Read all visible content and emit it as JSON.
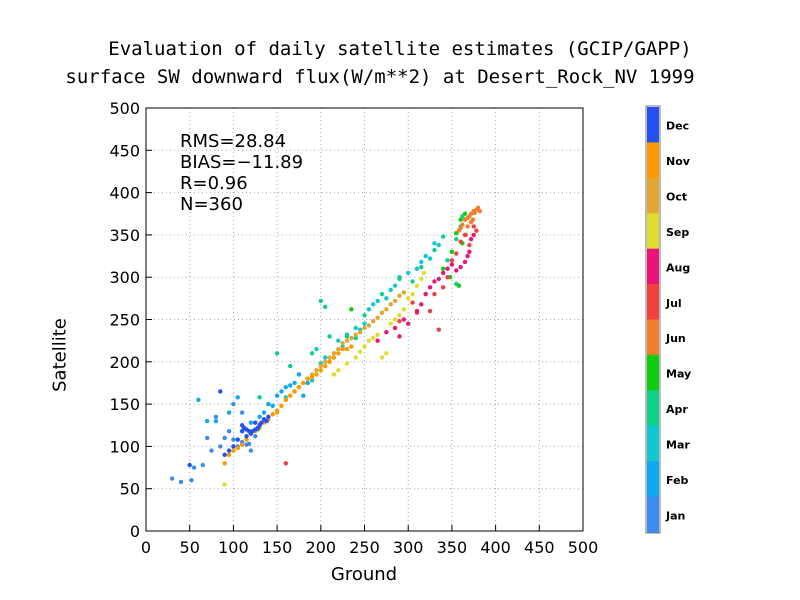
{
  "title": {
    "line1": "Evaluation of daily satellite estimates (GCIP/GAPP)",
    "line2": "surface SW downward flux(W/m**2) at Desert_Rock_NV 1999"
  },
  "stats": {
    "rms": "RMS=28.84",
    "bias": "BIAS=−11.89",
    "r": "R=0.96",
    "n": "N=360"
  },
  "chart_data": {
    "type": "scatter",
    "xlabel": "Ground",
    "ylabel": "Satellite",
    "xlim": [
      0,
      500
    ],
    "ylim": [
      0,
      500
    ],
    "xticks": [
      0,
      50,
      100,
      150,
      200,
      250,
      300,
      350,
      400,
      450,
      500
    ],
    "yticks": [
      0,
      50,
      100,
      150,
      200,
      250,
      300,
      350,
      400,
      450,
      500
    ],
    "grid": true,
    "legend": {
      "placement": "right colorbar",
      "entries": [
        {
          "label": "Dec",
          "color": "#2450f0"
        },
        {
          "label": "Nov",
          "color": "#ff9900"
        },
        {
          "label": "Oct",
          "color": "#e0a830"
        },
        {
          "label": "Sep",
          "color": "#e0dc30"
        },
        {
          "label": "Aug",
          "color": "#e8147c"
        },
        {
          "label": "Jul",
          "color": "#f04040"
        },
        {
          "label": "Jun",
          "color": "#f08030"
        },
        {
          "label": "May",
          "color": "#10cc10"
        },
        {
          "label": "Apr",
          "color": "#10d088"
        },
        {
          "label": "Mar",
          "color": "#10c8d0"
        },
        {
          "label": "Feb",
          "color": "#10a8f0"
        },
        {
          "label": "Jan",
          "color": "#3c8cf0"
        }
      ]
    },
    "series": [
      {
        "month": "Jan",
        "color": "#3c8cf0",
        "points": [
          [
            30,
            62
          ],
          [
            40,
            58
          ],
          [
            52,
            60
          ],
          [
            55,
            75
          ],
          [
            65,
            78
          ],
          [
            70,
            110
          ],
          [
            75,
            95
          ],
          [
            85,
            100
          ],
          [
            90,
            110
          ],
          [
            95,
            118
          ],
          [
            100,
            108
          ],
          [
            105,
            100
          ],
          [
            110,
            105
          ],
          [
            115,
            102
          ],
          [
            118,
            103
          ],
          [
            120,
            95
          ],
          [
            125,
            112
          ],
          [
            128,
            120
          ],
          [
            130,
            125
          ],
          [
            80,
            135
          ],
          [
            100,
            150
          ],
          [
            110,
            140
          ]
        ]
      },
      {
        "month": "Feb",
        "color": "#10a8f0",
        "points": [
          [
            60,
            155
          ],
          [
            70,
            130
          ],
          [
            80,
            130
          ],
          [
            95,
            140
          ],
          [
            105,
            158
          ],
          [
            120,
            128
          ],
          [
            130,
            135
          ],
          [
            135,
            140
          ],
          [
            140,
            150
          ],
          [
            145,
            148
          ],
          [
            150,
            160
          ],
          [
            155,
            165
          ],
          [
            160,
            170
          ],
          [
            165,
            172
          ],
          [
            170,
            175
          ],
          [
            175,
            185
          ],
          [
            180,
            160
          ],
          [
            185,
            175
          ]
        ]
      },
      {
        "month": "Mar",
        "color": "#10c8d0",
        "points": [
          [
            195,
            215
          ],
          [
            200,
            198
          ],
          [
            205,
            205
          ],
          [
            210,
            200
          ],
          [
            215,
            210
          ],
          [
            220,
            225
          ],
          [
            225,
            218
          ],
          [
            230,
            232
          ],
          [
            240,
            240
          ],
          [
            245,
            238
          ],
          [
            250,
            245
          ],
          [
            255,
            262
          ],
          [
            260,
            268
          ],
          [
            265,
            272
          ],
          [
            270,
            258
          ],
          [
            275,
            275
          ],
          [
            280,
            285
          ],
          [
            285,
            290
          ],
          [
            290,
            300
          ],
          [
            300,
            305
          ],
          [
            310,
            310
          ],
          [
            315,
            318
          ],
          [
            320,
            325
          ],
          [
            325,
            322
          ],
          [
            330,
            340
          ],
          [
            335,
            338
          ],
          [
            160,
            158
          ],
          [
            170,
            165
          ],
          [
            180,
            175
          ],
          [
            190,
            178
          ]
        ]
      },
      {
        "month": "Apr",
        "color": "#10d088",
        "points": [
          [
            150,
            210
          ],
          [
            200,
            272
          ],
          [
            205,
            265
          ],
          [
            230,
            230
          ],
          [
            240,
            228
          ],
          [
            250,
            255
          ],
          [
            270,
            280
          ],
          [
            290,
            298
          ],
          [
            305,
            295
          ],
          [
            315,
            312
          ],
          [
            330,
            332
          ],
          [
            340,
            348
          ],
          [
            345,
            320
          ],
          [
            350,
            330
          ],
          [
            355,
            345
          ],
          [
            360,
            360
          ],
          [
            362,
            372
          ],
          [
            355,
            292
          ],
          [
            130,
            158
          ],
          [
            165,
            195
          ],
          [
            190,
            210
          ],
          [
            210,
            230
          ]
        ]
      },
      {
        "month": "May",
        "color": "#10cc10",
        "points": [
          [
            235,
            262
          ],
          [
            320,
            280
          ],
          [
            340,
            310
          ],
          [
            350,
            330
          ],
          [
            355,
            352
          ],
          [
            360,
            368
          ],
          [
            365,
            375
          ],
          [
            370,
            372
          ],
          [
            375,
            378
          ],
          [
            348,
            300
          ],
          [
            358,
            290
          ],
          [
            362,
            340
          ]
        ]
      },
      {
        "month": "Jun",
        "color": "#f08030",
        "points": [
          [
            362,
            362
          ],
          [
            365,
            368
          ],
          [
            368,
            370
          ],
          [
            370,
            372
          ],
          [
            372,
            375
          ],
          [
            375,
            378
          ],
          [
            378,
            380
          ],
          [
            380,
            382
          ],
          [
            382,
            378
          ],
          [
            376,
            376
          ],
          [
            372,
            365
          ],
          [
            368,
            360
          ],
          [
            360,
            358
          ],
          [
            358,
            355
          ],
          [
            366,
            350
          ],
          [
            374,
            368
          ]
        ]
      },
      {
        "month": "Jul",
        "color": "#f04040",
        "points": [
          [
            160,
            80
          ],
          [
            305,
            270
          ],
          [
            325,
            260
          ],
          [
            340,
            288
          ],
          [
            345,
            300
          ],
          [
            350,
            320
          ],
          [
            355,
            328
          ],
          [
            360,
            342
          ],
          [
            365,
            350
          ],
          [
            370,
            338
          ],
          [
            375,
            360
          ],
          [
            378,
            355
          ],
          [
            335,
            238
          ],
          [
            290,
            248
          ],
          [
            310,
            258
          ],
          [
            330,
            280
          ]
        ]
      },
      {
        "month": "Aug",
        "color": "#e8147c",
        "points": [
          [
            290,
            230
          ],
          [
            300,
            245
          ],
          [
            310,
            260
          ],
          [
            320,
            280
          ],
          [
            325,
            288
          ],
          [
            330,
            295
          ],
          [
            335,
            298
          ],
          [
            340,
            305
          ],
          [
            345,
            310
          ],
          [
            350,
            315
          ],
          [
            355,
            308
          ],
          [
            360,
            312
          ],
          [
            365,
            318
          ],
          [
            368,
            325
          ],
          [
            370,
            330
          ],
          [
            372,
            345
          ],
          [
            375,
            350
          ],
          [
            265,
            225
          ],
          [
            275,
            235
          ],
          [
            285,
            240
          ],
          [
            295,
            250
          ],
          [
            315,
            268
          ]
        ]
      },
      {
        "month": "Sep",
        "color": "#e0dc30",
        "points": [
          [
            90,
            55
          ],
          [
            215,
            185
          ],
          [
            220,
            190
          ],
          [
            230,
            198
          ],
          [
            240,
            205
          ],
          [
            245,
            212
          ],
          [
            250,
            218
          ],
          [
            255,
            225
          ],
          [
            260,
            228
          ],
          [
            265,
            232
          ],
          [
            270,
            205
          ],
          [
            275,
            210
          ],
          [
            280,
            245
          ],
          [
            285,
            250
          ],
          [
            290,
            255
          ],
          [
            295,
            262
          ],
          [
            300,
            275
          ],
          [
            305,
            280
          ],
          [
            310,
            290
          ],
          [
            315,
            298
          ],
          [
            318,
            305
          ]
        ]
      },
      {
        "month": "Oct",
        "color": "#e0a830",
        "points": [
          [
            150,
            140
          ],
          [
            155,
            148
          ],
          [
            160,
            155
          ],
          [
            165,
            160
          ],
          [
            170,
            165
          ],
          [
            175,
            170
          ],
          [
            180,
            175
          ],
          [
            185,
            180
          ],
          [
            190,
            185
          ],
          [
            195,
            190
          ],
          [
            200,
            195
          ],
          [
            205,
            200
          ],
          [
            210,
            205
          ],
          [
            215,
            210
          ],
          [
            220,
            215
          ],
          [
            225,
            222
          ],
          [
            230,
            225
          ],
          [
            235,
            228
          ],
          [
            240,
            232
          ],
          [
            245,
            235
          ],
          [
            250,
            240
          ],
          [
            255,
            243
          ],
          [
            260,
            248
          ],
          [
            265,
            252
          ],
          [
            270,
            258
          ],
          [
            275,
            262
          ],
          [
            280,
            268
          ],
          [
            285,
            272
          ],
          [
            290,
            278
          ],
          [
            295,
            282
          ]
        ]
      },
      {
        "month": "Nov",
        "color": "#ff9900",
        "points": [
          [
            90,
            80
          ],
          [
            95,
            90
          ],
          [
            100,
            95
          ],
          [
            105,
            98
          ],
          [
            110,
            102
          ],
          [
            115,
            108
          ],
          [
            120,
            115
          ],
          [
            125,
            118
          ],
          [
            130,
            122
          ],
          [
            135,
            128
          ],
          [
            140,
            132
          ],
          [
            145,
            138
          ],
          [
            150,
            142
          ],
          [
            155,
            148
          ],
          [
            160,
            155
          ],
          [
            165,
            160
          ],
          [
            170,
            165
          ],
          [
            175,
            170
          ],
          [
            180,
            175
          ],
          [
            185,
            180
          ],
          [
            190,
            182
          ],
          [
            195,
            185
          ],
          [
            200,
            190
          ],
          [
            205,
            195
          ],
          [
            210,
            200
          ],
          [
            215,
            205
          ],
          [
            220,
            210
          ],
          [
            225,
            215
          ],
          [
            230,
            215
          ],
          [
            235,
            218
          ]
        ]
      },
      {
        "month": "Dec",
        "color": "#2450f0",
        "points": [
          [
            50,
            78
          ],
          [
            90,
            90
          ],
          [
            95,
            95
          ],
          [
            100,
            100
          ],
          [
            105,
            108
          ],
          [
            110,
            118
          ],
          [
            112,
            122
          ],
          [
            115,
            120
          ],
          [
            118,
            118
          ],
          [
            120,
            115
          ],
          [
            122,
            118
          ],
          [
            125,
            120
          ],
          [
            128,
            122
          ],
          [
            130,
            125
          ],
          [
            132,
            128
          ],
          [
            135,
            132
          ],
          [
            138,
            130
          ],
          [
            140,
            135
          ],
          [
            85,
            165
          ],
          [
            110,
            125
          ],
          [
            115,
            112
          ],
          [
            125,
            128
          ]
        ]
      }
    ]
  }
}
